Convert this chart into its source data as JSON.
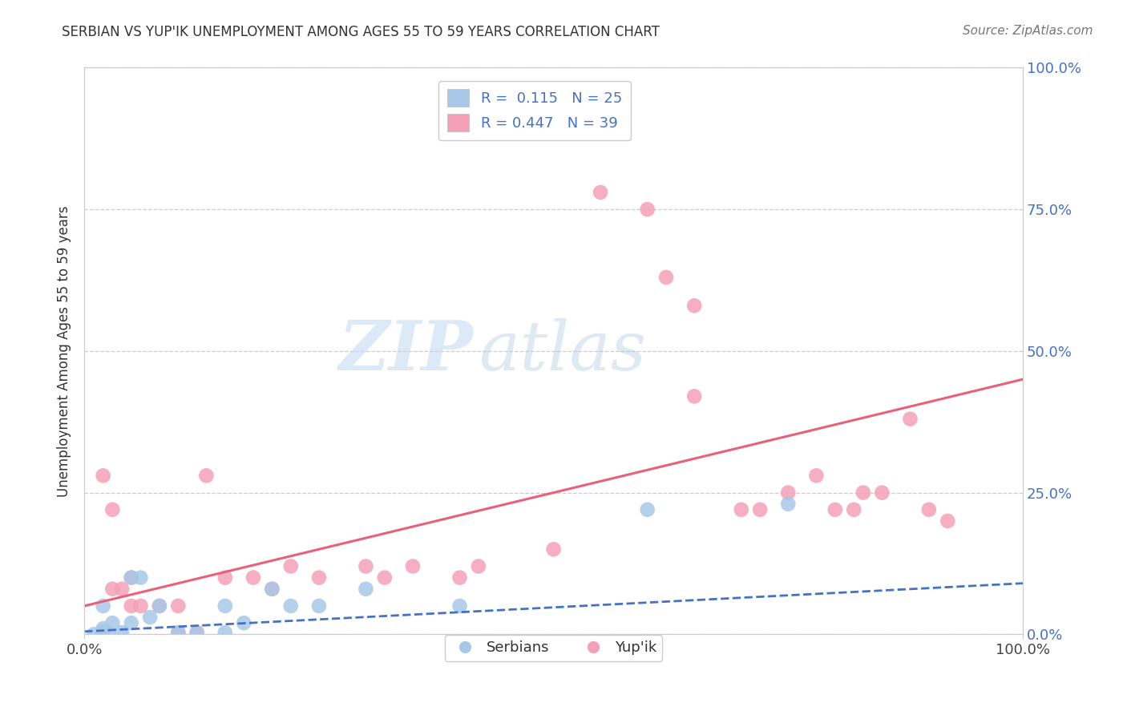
{
  "title": "SERBIAN VS YUP'IK UNEMPLOYMENT AMONG AGES 55 TO 59 YEARS CORRELATION CHART",
  "source": "Source: ZipAtlas.com",
  "ylabel": "Unemployment Among Ages 55 to 59 years",
  "xlim": [
    0.0,
    1.0
  ],
  "ylim": [
    0.0,
    1.0
  ],
  "ytick_positions": [
    0.0,
    0.25,
    0.5,
    0.75,
    1.0
  ],
  "ytick_labels_right": [
    "0.0%",
    "25.0%",
    "50.0%",
    "75.0%",
    "100.0%"
  ],
  "xtick_positions": [
    0.0,
    1.0
  ],
  "xtick_labels": [
    "0.0%",
    "100.0%"
  ],
  "grid_color": "#cccccc",
  "background_color": "#ffffff",
  "watermark_ZIP": "ZIP",
  "watermark_atlas": "atlas",
  "legend_R1": "R =  0.115",
  "legend_N1": "N = 25",
  "legend_R2": "R = 0.447",
  "legend_N2": "N = 39",
  "serbian_color": "#a8c8e8",
  "yupik_color": "#f4a0b8",
  "serbian_line_color": "#4472c4",
  "yupik_line_color": "#e8607a",
  "label_color": "#4472c4",
  "serbian_scatter_x": [
    0.02,
    0.02,
    0.025,
    0.02,
    0.01,
    0.03,
    0.04,
    0.02,
    0.05,
    0.05,
    0.06,
    0.07,
    0.08,
    0.1,
    0.12,
    0.15,
    0.15,
    0.17,
    0.2,
    0.22,
    0.25,
    0.3,
    0.4,
    0.6,
    0.75
  ],
  "serbian_scatter_y": [
    0.005,
    0.01,
    0.003,
    0.0,
    0.0,
    0.02,
    0.003,
    0.05,
    0.02,
    0.1,
    0.1,
    0.03,
    0.05,
    0.003,
    0.003,
    0.003,
    0.05,
    0.02,
    0.08,
    0.05,
    0.05,
    0.08,
    0.05,
    0.22,
    0.23
  ],
  "yupik_scatter_x": [
    0.02,
    0.03,
    0.03,
    0.04,
    0.05,
    0.05,
    0.06,
    0.08,
    0.1,
    0.1,
    0.12,
    0.13,
    0.15,
    0.18,
    0.2,
    0.22,
    0.25,
    0.3,
    0.32,
    0.35,
    0.4,
    0.42,
    0.5,
    0.55,
    0.6,
    0.62,
    0.65,
    0.65,
    0.7,
    0.72,
    0.75,
    0.78,
    0.8,
    0.82,
    0.83,
    0.85,
    0.88,
    0.9,
    0.92
  ],
  "yupik_scatter_y": [
    0.28,
    0.22,
    0.08,
    0.08,
    0.1,
    0.05,
    0.05,
    0.05,
    0.003,
    0.05,
    0.003,
    0.28,
    0.1,
    0.1,
    0.08,
    0.12,
    0.1,
    0.12,
    0.1,
    0.12,
    0.1,
    0.12,
    0.15,
    0.78,
    0.75,
    0.63,
    0.58,
    0.42,
    0.22,
    0.22,
    0.25,
    0.28,
    0.22,
    0.22,
    0.25,
    0.25,
    0.38,
    0.22,
    0.2
  ],
  "serbian_trend_x": [
    0.0,
    1.0
  ],
  "serbian_trend_y": [
    0.005,
    0.09
  ],
  "yupik_trend_x": [
    0.0,
    1.0
  ],
  "yupik_trend_y": [
    0.05,
    0.45
  ],
  "scatter_size": 180,
  "scatter_alpha": 0.85
}
